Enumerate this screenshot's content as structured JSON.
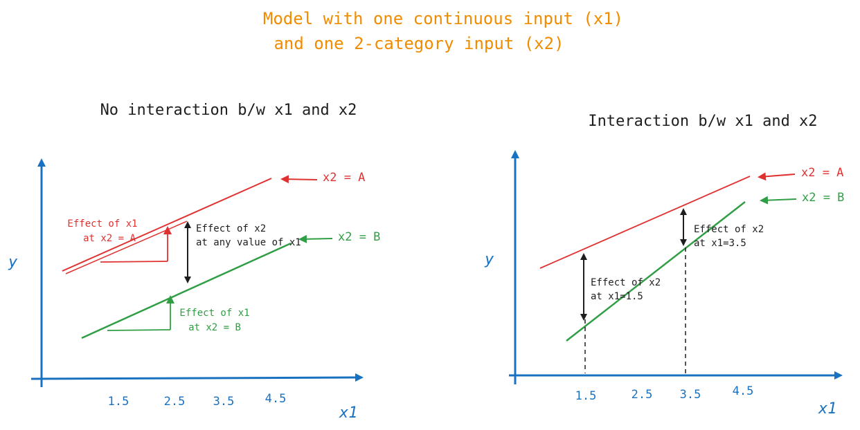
{
  "title_lines": [
    "Model with one continuous input (x1)",
    "and one 2-category input (x2)"
  ],
  "colors": {
    "title": "#f08c00",
    "axis": "#1971c2",
    "series_a": "#e03131",
    "series_b": "#2f9e44",
    "annotation": "#1e1e1e"
  },
  "left_panel": {
    "subtitle": "No interaction b/w x1 and x2",
    "ylabel": "y",
    "xlabel": "x1",
    "ticks": [
      "1.5",
      "2.5",
      "3.5",
      "4.5"
    ],
    "series_a_label": "x2 = A",
    "series_b_label": "x2 = B",
    "effect_x1_a": [
      "Effect of x1",
      "at x2 = A"
    ],
    "effect_x1_b": [
      "Effect of x1",
      "at x2 = B"
    ],
    "effect_x2": [
      "Effect of x2",
      "at any value of x1"
    ]
  },
  "right_panel": {
    "subtitle": "Interaction b/w x1 and x2",
    "ylabel": "y",
    "xlabel": "x1",
    "ticks": [
      "1.5",
      "2.5",
      "3.5",
      "4.5"
    ],
    "series_a_label": "x2 = A",
    "series_b_label": "x2 = B",
    "effect_x2_at_15": [
      "Effect of x2",
      "at x1=1.5"
    ],
    "effect_x2_at_35": [
      "Effect of x2",
      "at x1=3.5"
    ]
  }
}
